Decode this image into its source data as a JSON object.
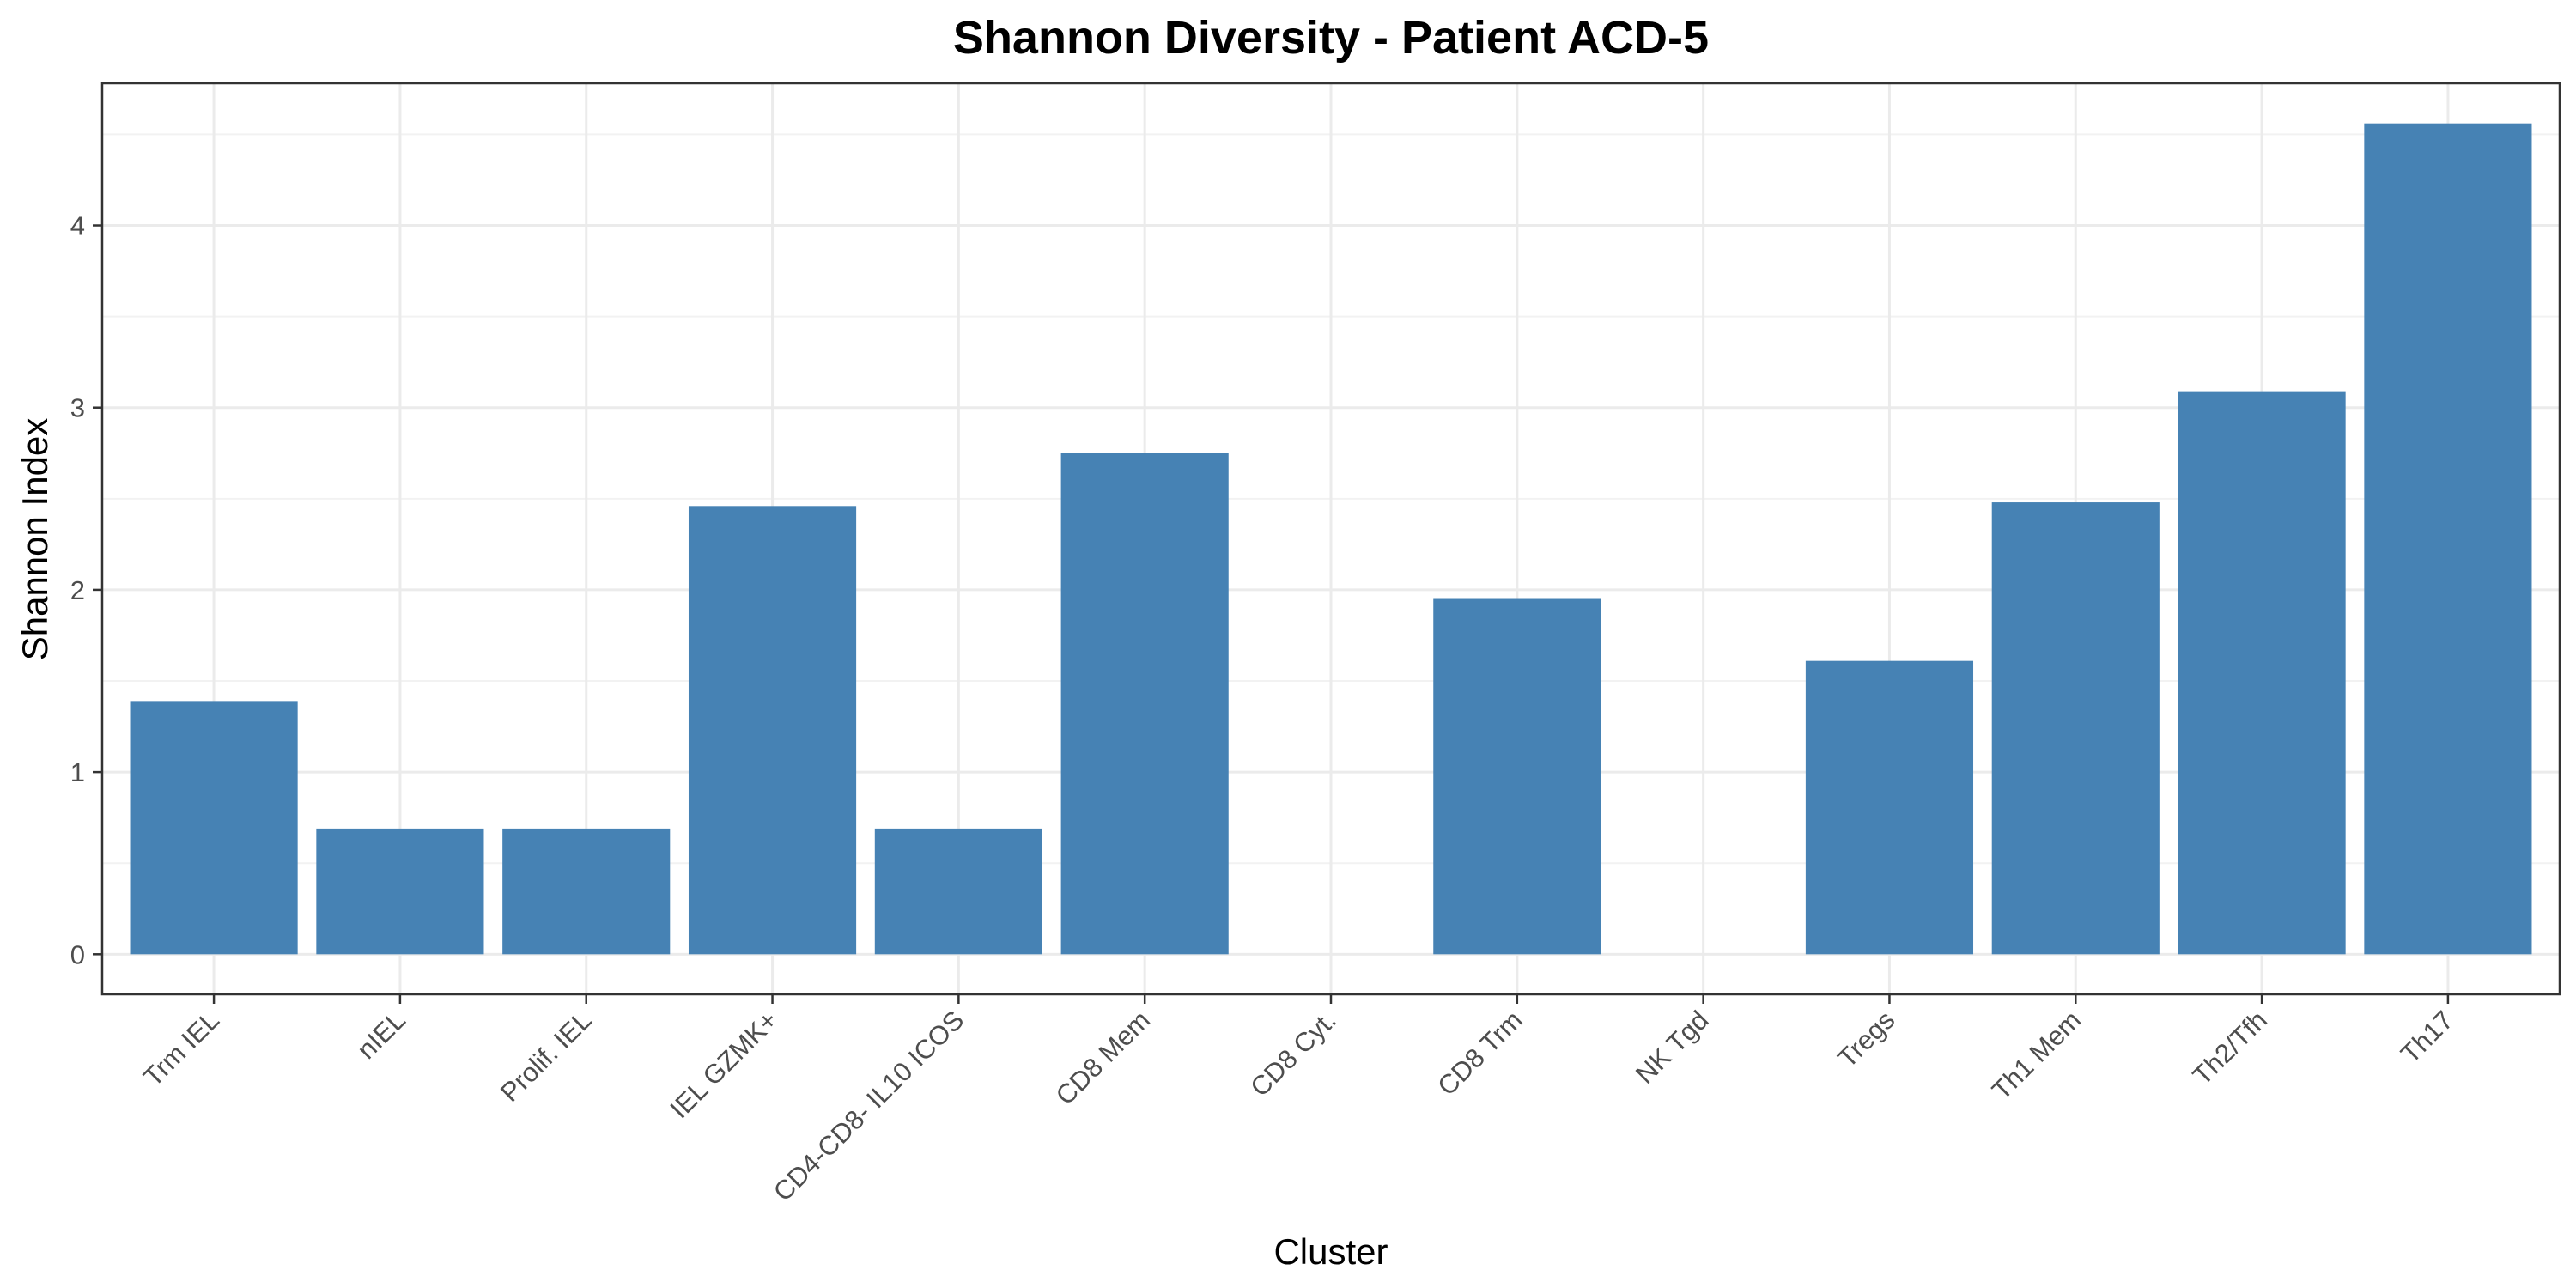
{
  "chart_data": {
    "type": "bar",
    "title": "Shannon Diversity - Patient ACD-5",
    "xlabel": "Cluster",
    "ylabel": "Shannon Index",
    "categories": [
      "Trm IEL",
      "nIEL",
      "Prolif. IEL",
      "IEL GZMK+",
      "CD4-CD8- IL10 ICOS",
      "CD8 Mem",
      "CD8 Cyt.",
      "CD8 Trm",
      "NK Tgd",
      "Tregs",
      "Th1 Mem",
      "Th2/Tfh",
      "Th17"
    ],
    "values": [
      1.39,
      0.69,
      0.69,
      2.46,
      0.69,
      2.75,
      0,
      1.95,
      0,
      1.61,
      2.48,
      3.09,
      4.56
    ],
    "ylim": [
      -0.22,
      4.78
    ],
    "yticks": [
      0,
      1,
      2,
      3,
      4
    ],
    "grid": true,
    "bar_color": "#4682b4",
    "panel_border_color": "#333333"
  }
}
